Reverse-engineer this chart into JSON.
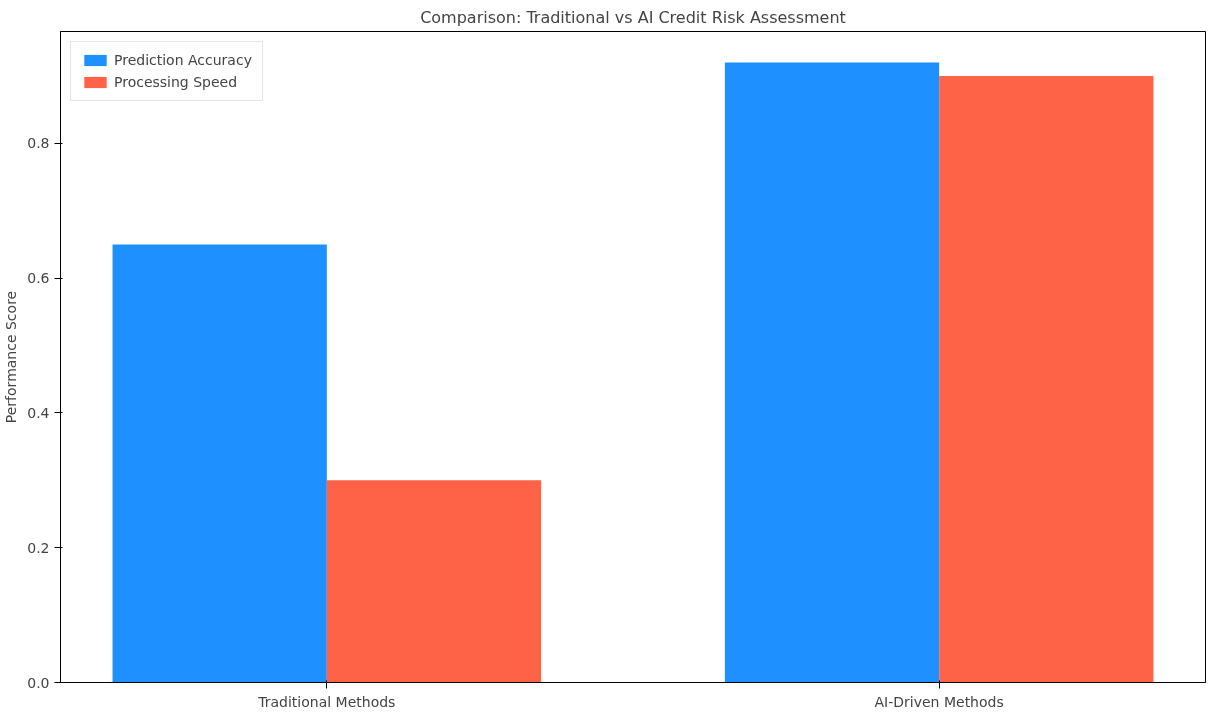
{
  "chart_data": {
    "type": "bar",
    "title": "Comparison: Traditional vs AI Credit Risk Assessment",
    "ylabel": "Performance Score",
    "categories": [
      "Traditional Methods",
      "AI-Driven Methods"
    ],
    "series": [
      {
        "name": "Prediction Accuracy",
        "color": "#1e90ff",
        "values": [
          0.65,
          0.92
        ]
      },
      {
        "name": "Processing Speed",
        "color": "#ff6347",
        "values": [
          0.3,
          0.9
        ]
      }
    ],
    "ylim": [
      0,
      0.966
    ],
    "yticks": [
      {
        "value": 0,
        "label": "0.0"
      },
      0.2,
      0.4,
      0.6,
      0.8
    ],
    "grid": false,
    "legend": "top left"
  }
}
